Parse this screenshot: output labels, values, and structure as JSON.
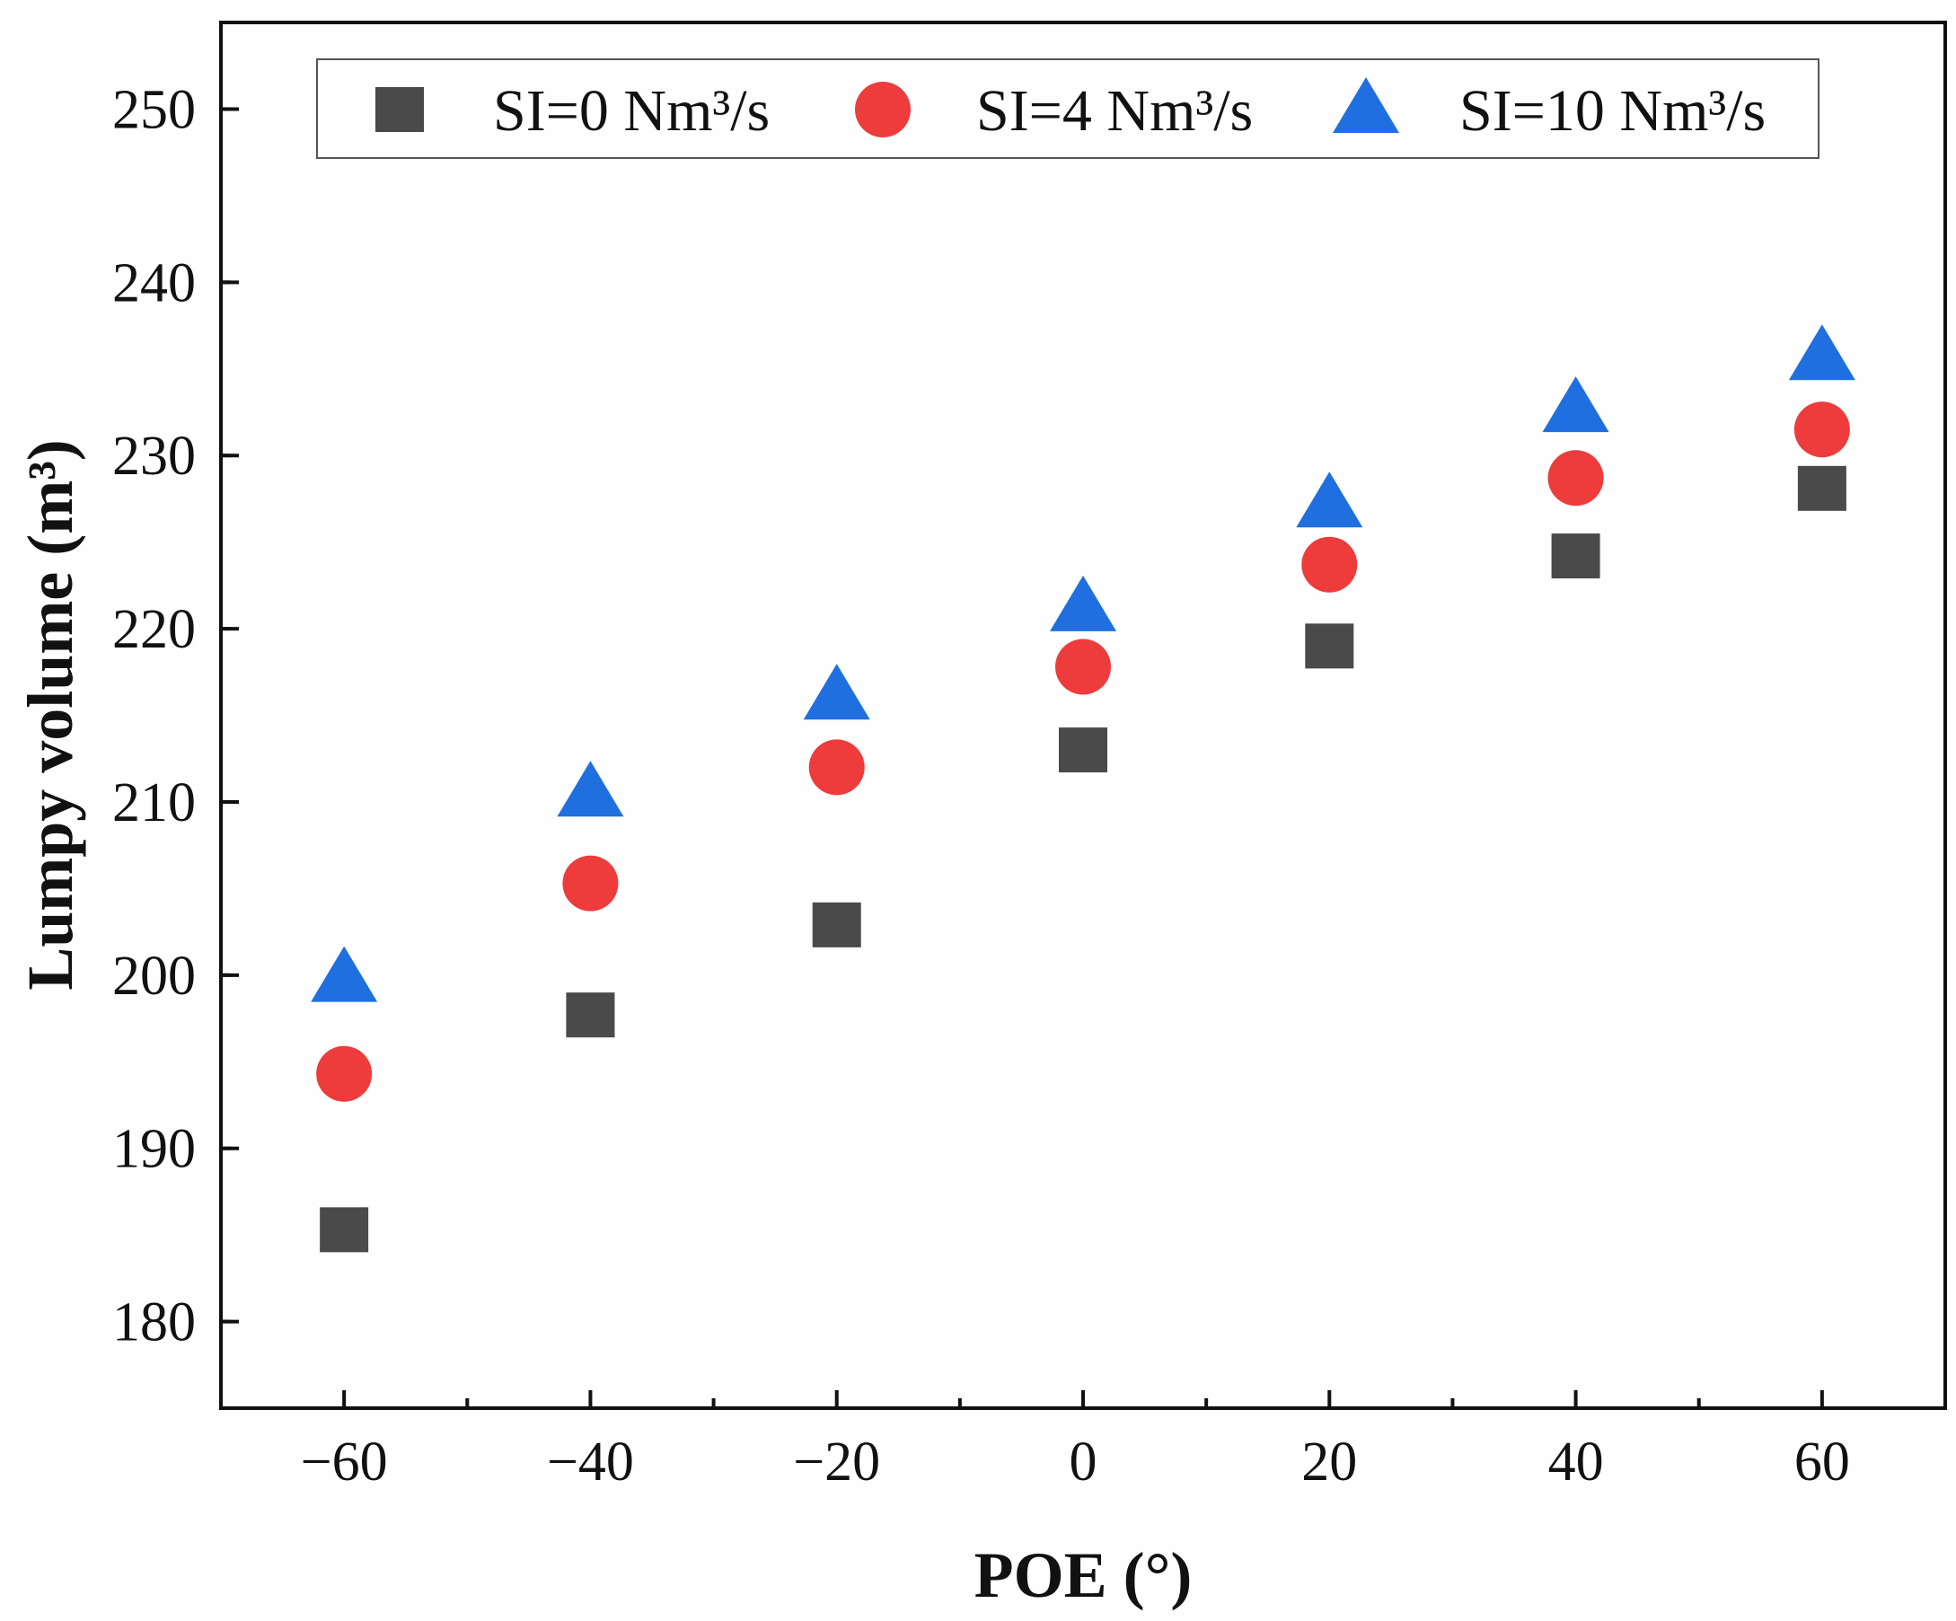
{
  "chart_data": {
    "type": "scatter",
    "title": "",
    "xlabel": "POE (°)",
    "ylabel": "Lumpy volume (m³)",
    "xlim": [
      -70,
      70
    ],
    "ylim": [
      175,
      255
    ],
    "xticks": [
      -60,
      -40,
      -20,
      0,
      20,
      40,
      60
    ],
    "xtick_labels": [
      "−60",
      "−40",
      "−20",
      "0",
      "20",
      "40",
      "60"
    ],
    "yticks": [
      180,
      190,
      200,
      210,
      220,
      230,
      240,
      250
    ],
    "ytick_labels": [
      "180",
      "190",
      "200",
      "210",
      "220",
      "230",
      "240",
      "250"
    ],
    "grid": false,
    "legend_position": "top",
    "x": [
      -60,
      -40,
      -20,
      0,
      20,
      40,
      60
    ],
    "series": [
      {
        "name": "SI=0 Nm³/s",
        "marker": "square",
        "color": "#4a4a4a",
        "values": [
          185.3,
          197.7,
          202.9,
          213.0,
          219.0,
          224.2,
          228.1
        ]
      },
      {
        "name": "SI=4 Nm³/s",
        "marker": "circle",
        "color": "#ee3b3b",
        "values": [
          194.3,
          205.3,
          212.0,
          217.8,
          223.7,
          228.7,
          231.5
        ]
      },
      {
        "name": "SI=10 Nm³/s",
        "marker": "triangle",
        "color": "#1f6fe0",
        "values": [
          199.8,
          210.5,
          216.1,
          221.2,
          227.2,
          232.7,
          235.7
        ]
      }
    ]
  }
}
